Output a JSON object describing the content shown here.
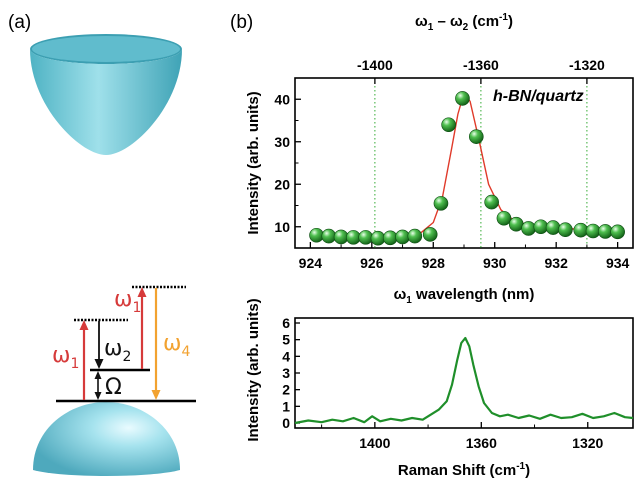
{
  "panels": {
    "a": "(a)",
    "b": "(b)"
  },
  "diagram": {
    "omega1_left": "ω",
    "omega1_left_sub": "1",
    "omega1_right": "ω",
    "omega1_right_sub": "1",
    "omega2": "ω",
    "omega2_sub": "2",
    "omega4": "ω",
    "omega4_sub": "4",
    "Omega": "Ω",
    "colors": {
      "red": "#d63a3a",
      "orange": "#f2a230",
      "black": "#111111",
      "cone": "#7fd0dc"
    }
  },
  "chart_data": [
    {
      "type": "scatter",
      "title": "",
      "annotation": "h-BN/quartz",
      "xlabel": "ω1 wavelength (nm)",
      "xlabel_main": "ω",
      "xlabel_sub": "1",
      "xlabel_rest": " wavelength (nm)",
      "ylabel": "Intensity (arb. units)",
      "top_xlabel": "ω1 – ω2 (cm-1)",
      "top_xlabel_parts": {
        "w1": "ω",
        "s1": "1",
        "dash": " – ",
        "w2": "ω",
        "s2": "2",
        "unit": " (cm",
        "exp": "-1",
        "close": ")"
      },
      "xlim": [
        923.5,
        934.5
      ],
      "ylim": [
        5,
        45
      ],
      "xticks": [
        924,
        926,
        928,
        930,
        932,
        934
      ],
      "xtick_labels": [
        "924",
        "926",
        "928",
        "930",
        "932",
        "934"
      ],
      "yticks": [
        10,
        20,
        30,
        40
      ],
      "ytick_labels": [
        "10",
        "20",
        "30",
        "40"
      ],
      "top_ticks": [
        {
          "x": 926.1,
          "label": "-1400"
        },
        {
          "x": 929.55,
          "label": "-1360"
        },
        {
          "x": 933.0,
          "label": "-1320"
        }
      ],
      "grid_lines_x": [
        926.1,
        929.55,
        933.0
      ],
      "points": {
        "x": [
          924.2,
          924.6,
          925.0,
          925.4,
          925.8,
          926.2,
          926.6,
          927.0,
          927.4,
          927.9,
          928.25,
          928.5,
          928.95,
          929.4,
          929.9,
          930.3,
          930.7,
          931.1,
          931.5,
          931.9,
          932.3,
          932.8,
          933.2,
          933.6,
          934.0
        ],
        "y": [
          8.0,
          7.8,
          7.6,
          7.5,
          7.5,
          7.3,
          7.4,
          7.6,
          7.8,
          8.2,
          15.5,
          34.0,
          40.2,
          31.2,
          15.8,
          12.0,
          10.6,
          9.6,
          10.0,
          9.8,
          9.3,
          9.2,
          9.0,
          8.9,
          8.8
        ]
      },
      "fit": {
        "x": [
          924.2,
          925.0,
          926.0,
          927.0,
          927.6,
          928.0,
          928.3,
          928.6,
          928.8,
          929.0,
          929.2,
          929.5,
          929.8,
          930.2,
          930.6,
          931.0,
          931.5,
          932.0,
          933.0,
          934.0
        ],
        "y": [
          7.6,
          7.6,
          7.6,
          7.8,
          8.6,
          11.0,
          17.0,
          28.5,
          36.5,
          41.5,
          39.5,
          30.0,
          20.0,
          14.0,
          11.6,
          10.6,
          10.0,
          9.7,
          9.3,
          9.0
        ]
      }
    },
    {
      "type": "line",
      "title": "",
      "xlabel": "Raman Shift (cm-1)",
      "xlabel_main": "Raman Shift (cm",
      "xlabel_exp": "-1",
      "xlabel_close": ")",
      "ylabel": "Intensity (arb. units)",
      "xlim": [
        1430,
        1303
      ],
      "ylim": [
        -0.3,
        6.3
      ],
      "xticks": [
        1400,
        1360,
        1320
      ],
      "xtick_labels": [
        "1400",
        "1360",
        "1320"
      ],
      "yticks": [
        0,
        1,
        2,
        3,
        4,
        5,
        6
      ],
      "ytick_labels": [
        "0",
        "1",
        "2",
        "3",
        "4",
        "5",
        "6"
      ],
      "series": [
        {
          "x": [
            1430,
            1425,
            1420,
            1416,
            1412,
            1408,
            1404,
            1401,
            1398,
            1394,
            1390,
            1386,
            1382,
            1379,
            1376,
            1373,
            1371,
            1369,
            1367.5,
            1366,
            1364.5,
            1363,
            1361,
            1359,
            1356,
            1353,
            1350,
            1346,
            1342,
            1338,
            1334,
            1330,
            1326,
            1322,
            1318,
            1314,
            1310,
            1306,
            1303
          ],
          "y": [
            0.0,
            0.15,
            0.05,
            0.2,
            0.1,
            0.3,
            0.05,
            0.4,
            0.1,
            0.25,
            0.15,
            0.3,
            0.2,
            0.5,
            0.8,
            1.3,
            2.3,
            3.8,
            4.8,
            5.1,
            4.6,
            3.5,
            2.2,
            1.2,
            0.6,
            0.4,
            0.5,
            0.3,
            0.45,
            0.25,
            0.5,
            0.3,
            0.35,
            0.55,
            0.3,
            0.4,
            0.6,
            0.35,
            0.3
          ]
        }
      ]
    }
  ]
}
